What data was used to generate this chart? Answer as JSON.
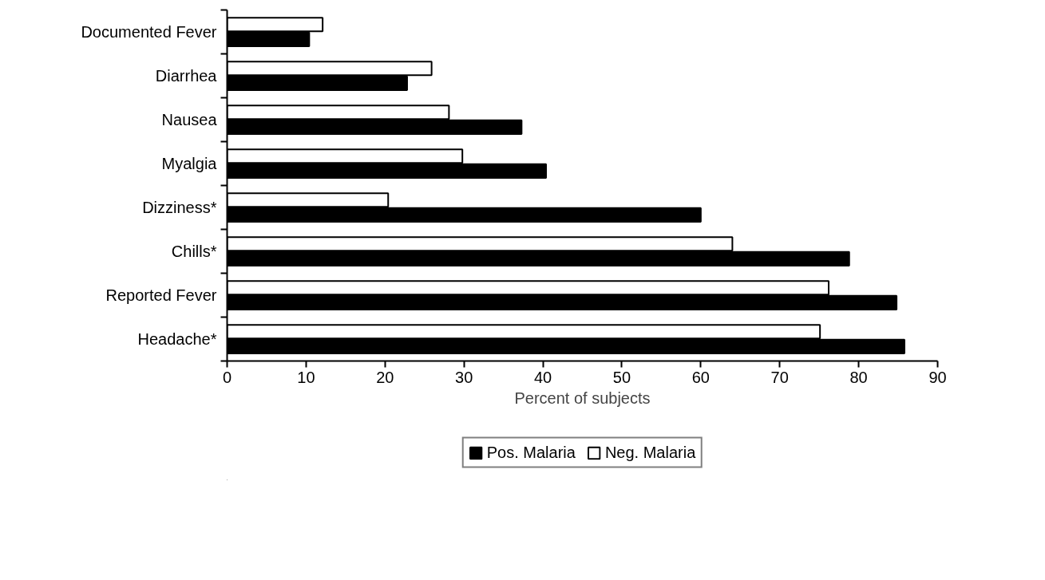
{
  "chart_data": {
    "type": "bar",
    "orientation": "horizontal",
    "xlabel": "Percent of subjects",
    "categories": [
      "Documented Fever",
      "Diarrhea",
      "Nausea",
      "Myalgia",
      "Dizziness*",
      "Chills*",
      "Reported Fever",
      "Headache*"
    ],
    "series": [
      {
        "name": "Pos. Malaria",
        "color": "#000000",
        "values": [
          10.4,
          22.8,
          37.3,
          40.4,
          60.0,
          78.8,
          84.8,
          85.8
        ]
      },
      {
        "name": "Neg. Malaria",
        "color": "#ffffff",
        "values": [
          12.1,
          25.9,
          28.1,
          29.8,
          20.4,
          64.0,
          76.2,
          75.1
        ]
      }
    ],
    "xlim": [
      0,
      90
    ],
    "xticks": [
      0,
      10,
      20,
      30,
      40,
      50,
      60,
      70,
      80,
      90
    ],
    "grid": false,
    "legend": "bottom"
  }
}
